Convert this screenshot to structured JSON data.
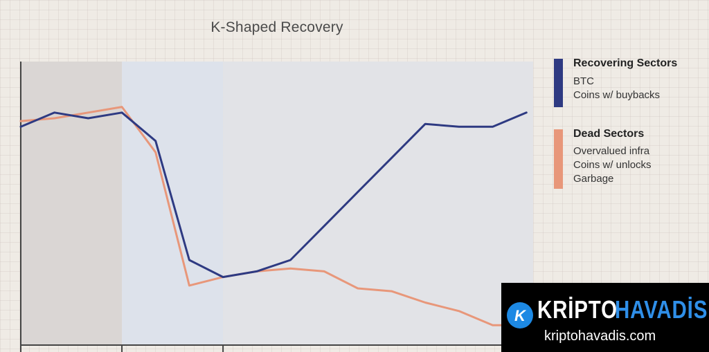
{
  "chart_data": {
    "type": "line",
    "title": "K-Shaped Recovery",
    "xlabel": "",
    "ylabel": "",
    "x": [
      0,
      1,
      2,
      3,
      4,
      5,
      6,
      7,
      8,
      9,
      10,
      11,
      12,
      13,
      14,
      15
    ],
    "xlim": [
      0,
      15.2
    ],
    "ylim": [
      0,
      100
    ],
    "grid": false,
    "legend_position": "right",
    "phases": [
      {
        "from": 0,
        "to": 3,
        "color": "#dad6d4"
      },
      {
        "from": 3,
        "to": 6,
        "color": "#dde2eb"
      },
      {
        "from": 6,
        "to": 15.2,
        "color": "#e2e3e7"
      }
    ],
    "series": [
      {
        "name": "Recovering Sectors",
        "color": "#2e3a82",
        "values": [
          77,
          82,
          80,
          82,
          72,
          30,
          24,
          26,
          30,
          42,
          54,
          66,
          78,
          77,
          77,
          82
        ]
      },
      {
        "name": "Dead Sectors",
        "color": "#e8977a",
        "values": [
          79,
          80,
          82,
          84,
          68,
          21,
          24,
          26,
          27,
          26,
          20,
          19,
          15,
          12,
          7,
          7
        ]
      }
    ]
  },
  "legend": {
    "recovering": {
      "heading": "Recovering Sectors",
      "items": [
        "BTC",
        "Coins w/ buybacks"
      ],
      "color": "#2e3a82"
    },
    "dead": {
      "heading": "Dead Sectors",
      "items": [
        "Overvalued infra",
        "Coins w/ unlocks",
        "Garbage"
      ],
      "color": "#e8977a"
    }
  },
  "watermark": {
    "logo_letter": "K",
    "brand_part1": "KRİPTO",
    "brand_part2": "HAVADİS",
    "url": "kriptohavadis.com",
    "accent_color": "#2f8fe8"
  }
}
